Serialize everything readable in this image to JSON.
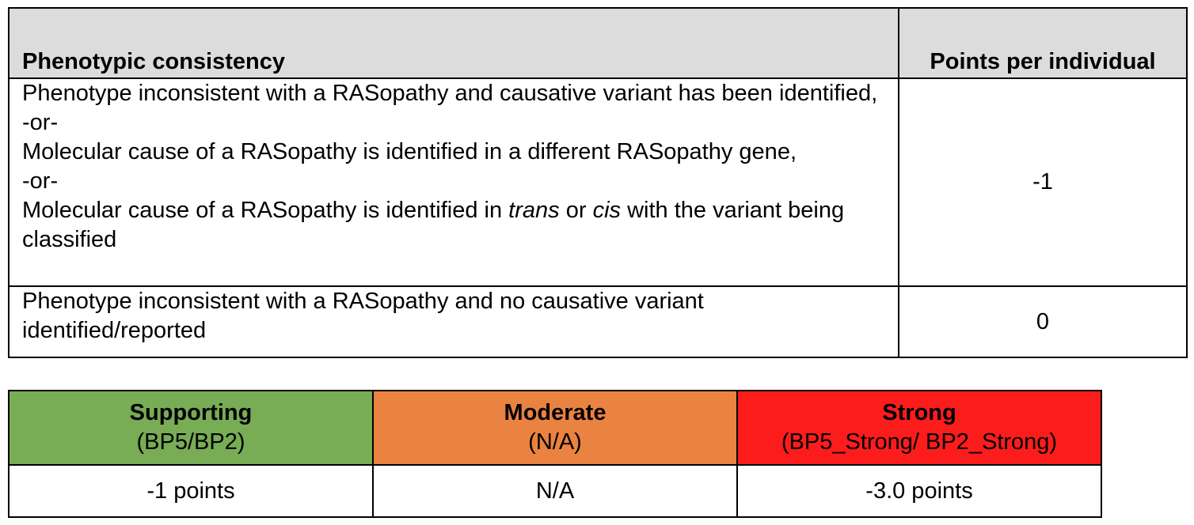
{
  "criteria_table": {
    "headers": {
      "phenotype": "Phenotypic consistency",
      "points": "Points per individual"
    },
    "row1": {
      "line1": "Phenotype inconsistent with a RASopathy and causative variant has been identified,",
      "or1": "-or-",
      "line2": "Molecular cause of a RASopathy is identified in a different RASopathy gene,",
      "or2": "-or-",
      "line3_a": "Molecular cause of a RASopathy is identified in ",
      "line3_trans": "trans",
      "line3_b": " or ",
      "line3_cis": "cis",
      "line3_c": " with the variant being classified",
      "points": "-1"
    },
    "row2": {
      "text": "Phenotype inconsistent with a RASopathy and no causative variant identified/reported",
      "points": "0"
    }
  },
  "strength_table": {
    "columns": [
      {
        "level": "Supporting",
        "code": "(BP5/BP2)",
        "value": "-1 points",
        "color": "#78ac55"
      },
      {
        "level": "Moderate",
        "code": "(N/A)",
        "value": "N/A",
        "color": "#ea8241"
      },
      {
        "level": "Strong",
        "code": "(BP5_Strong/ BP2_Strong)",
        "value": "-3.0 points",
        "color": "#fc1c1c"
      }
    ]
  }
}
